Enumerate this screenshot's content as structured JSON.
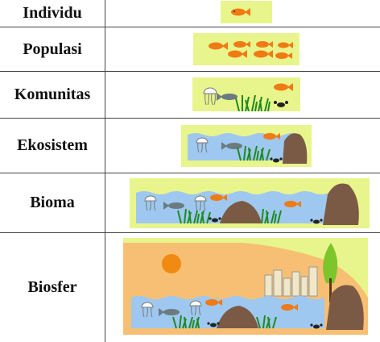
{
  "rows": [
    {
      "label": "Individu",
      "illustration": "single-fish"
    },
    {
      "label": "Populasi",
      "illustration": "school-of-fish"
    },
    {
      "label": "Komunitas",
      "illustration": "jellyfish-fish-crab-grass"
    },
    {
      "label": "Ekosistem",
      "illustration": "pond-with-rock"
    },
    {
      "label": "Bioma",
      "illustration": "wide-pond-with-rocks"
    },
    {
      "label": "Biosfer",
      "illustration": "landscape-with-sun-city-tree"
    }
  ],
  "colors": {
    "panel_bg": "#e8f58c",
    "water": "#9ec8f0",
    "fish": "#f07a14",
    "rock": "#7a5a44",
    "grass": "#1f8a1f",
    "sun": "#f08a10",
    "land": "#f7bf73"
  }
}
